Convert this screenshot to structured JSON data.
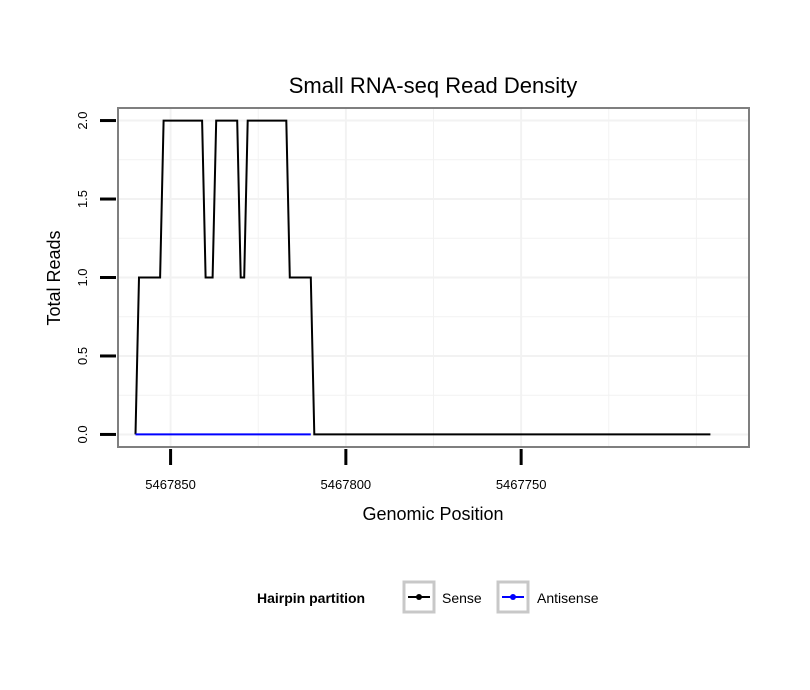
{
  "chart_data": {
    "type": "line",
    "title": "Small RNA-seq Read Density",
    "xlabel": "Genomic Position",
    "ylabel": "Total Reads",
    "x_reversed": true,
    "xlim": [
      5467865,
      5467685
    ],
    "ylim": [
      -0.08,
      2.08
    ],
    "x_ticks": [
      {
        "value": 5467850,
        "label": "5467850"
      },
      {
        "value": 5467800,
        "label": "5467800"
      },
      {
        "value": 5467750,
        "label": "5467750"
      }
    ],
    "y_ticks": [
      {
        "value": 0.0,
        "label": "0.0"
      },
      {
        "value": 0.5,
        "label": "0.5"
      },
      {
        "value": 1.0,
        "label": "1.0"
      },
      {
        "value": 1.5,
        "label": "1.5"
      },
      {
        "value": 2.0,
        "label": "2.0"
      }
    ],
    "grid": true,
    "legend": {
      "title": "Hairpin partition",
      "position": "bottom"
    },
    "series": [
      {
        "name": "Sense",
        "color": "#000000",
        "x": [
          5467860,
          5467859,
          5467853,
          5467852,
          5467841,
          5467840,
          5467838,
          5467837,
          5467831,
          5467830,
          5467829,
          5467828,
          5467817,
          5467816,
          5467810,
          5467809,
          5467696
        ],
        "y": [
          0,
          1,
          1,
          2,
          2,
          1,
          1,
          2,
          2,
          1,
          1,
          2,
          2,
          1,
          1,
          0,
          0
        ]
      },
      {
        "name": "Antisense",
        "color": "#0000ff",
        "x": [
          5467860,
          5467810
        ],
        "y": [
          0,
          0
        ]
      }
    ]
  }
}
